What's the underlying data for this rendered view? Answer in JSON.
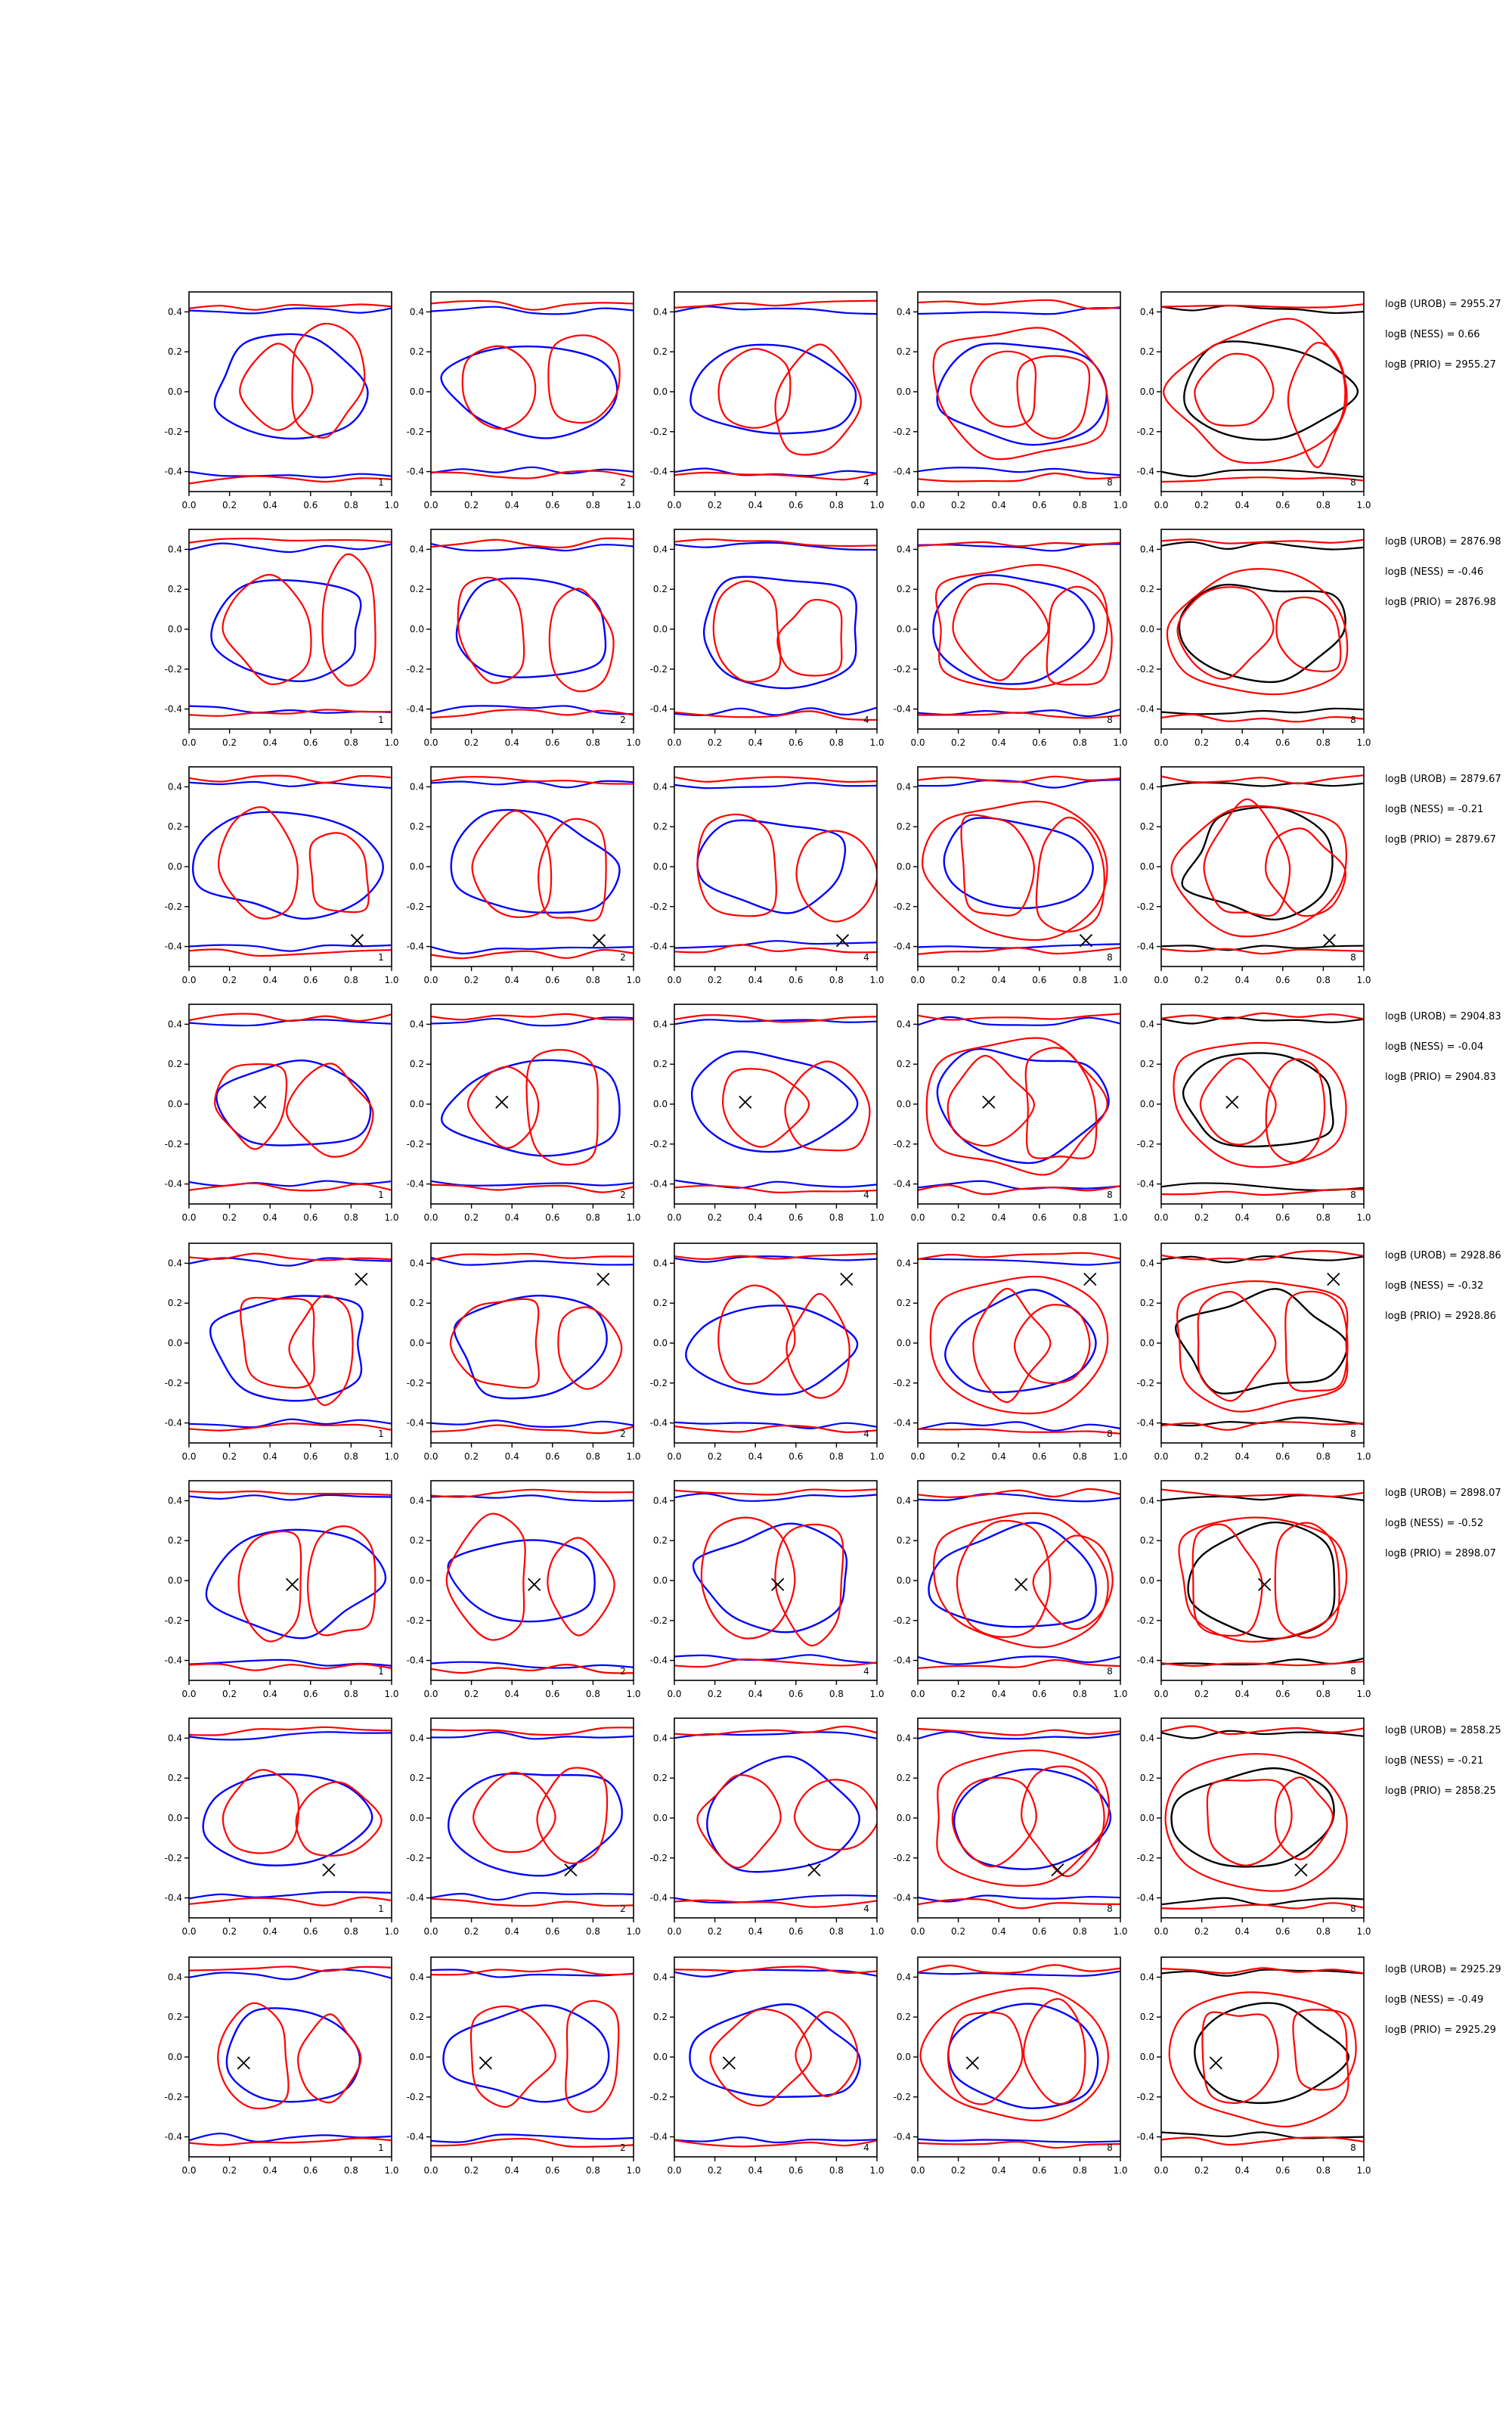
{
  "chart_data": {
    "type": "line",
    "layout": "grid of 8 rows x 5 columns of contour panels",
    "xlim": [
      0.0,
      1.0
    ],
    "ylim": [
      -0.5,
      0.5
    ],
    "xticks": [
      "0.0",
      "0.2",
      "0.4",
      "0.6",
      "0.8",
      "1.0"
    ],
    "yticks": [
      "0.4",
      "0.2",
      "0.0",
      "-0.2",
      "-0.4"
    ],
    "grid": false,
    "legend": "none",
    "colors": {
      "contour_a": "#0000ff",
      "contour_b": "#ff0000",
      "combined": "#000000",
      "marker": "#000000"
    },
    "column_tags": [
      "1",
      "2",
      "4",
      "8",
      "8"
    ],
    "rows": [
      {
        "marker": null,
        "annotations": [
          "logB (UROB) = 2955.27",
          "logB (NESS) = 0.66",
          "logB (PRIO) = 2955.27"
        ]
      },
      {
        "marker": null,
        "annotations": [
          "logB (UROB) = 2876.98",
          "logB (NESS) = -0.46",
          "logB (PRIO) = 2876.98"
        ]
      },
      {
        "marker": [
          0.83,
          -0.37
        ],
        "annotations": [
          "logB (UROB) = 2879.67",
          "logB (NESS) = -0.21",
          "logB (PRIO) = 2879.67"
        ]
      },
      {
        "marker": [
          0.35,
          0.01
        ],
        "annotations": [
          "logB (UROB) = 2904.83",
          "logB (NESS) = -0.04",
          "logB (PRIO) = 2904.83"
        ]
      },
      {
        "marker": [
          0.85,
          0.32
        ],
        "annotations": [
          "logB (UROB) = 2928.86",
          "logB (NESS) = -0.32",
          "logB (PRIO) = 2928.86"
        ]
      },
      {
        "marker": [
          0.51,
          -0.02
        ],
        "annotations": [
          "logB (UROB) = 2898.07",
          "logB (NESS) = -0.52",
          "logB (PRIO) = 2898.07"
        ]
      },
      {
        "marker": [
          0.69,
          -0.26
        ],
        "annotations": [
          "logB (UROB) = 2858.25",
          "logB (NESS) = -0.21",
          "logB (PRIO) = 2858.25"
        ]
      },
      {
        "marker": [
          0.27,
          -0.03
        ],
        "annotations": [
          "logB (UROB) = 2925.29",
          "logB (NESS) = -0.49",
          "logB (PRIO) = 2925.29"
        ]
      }
    ]
  }
}
